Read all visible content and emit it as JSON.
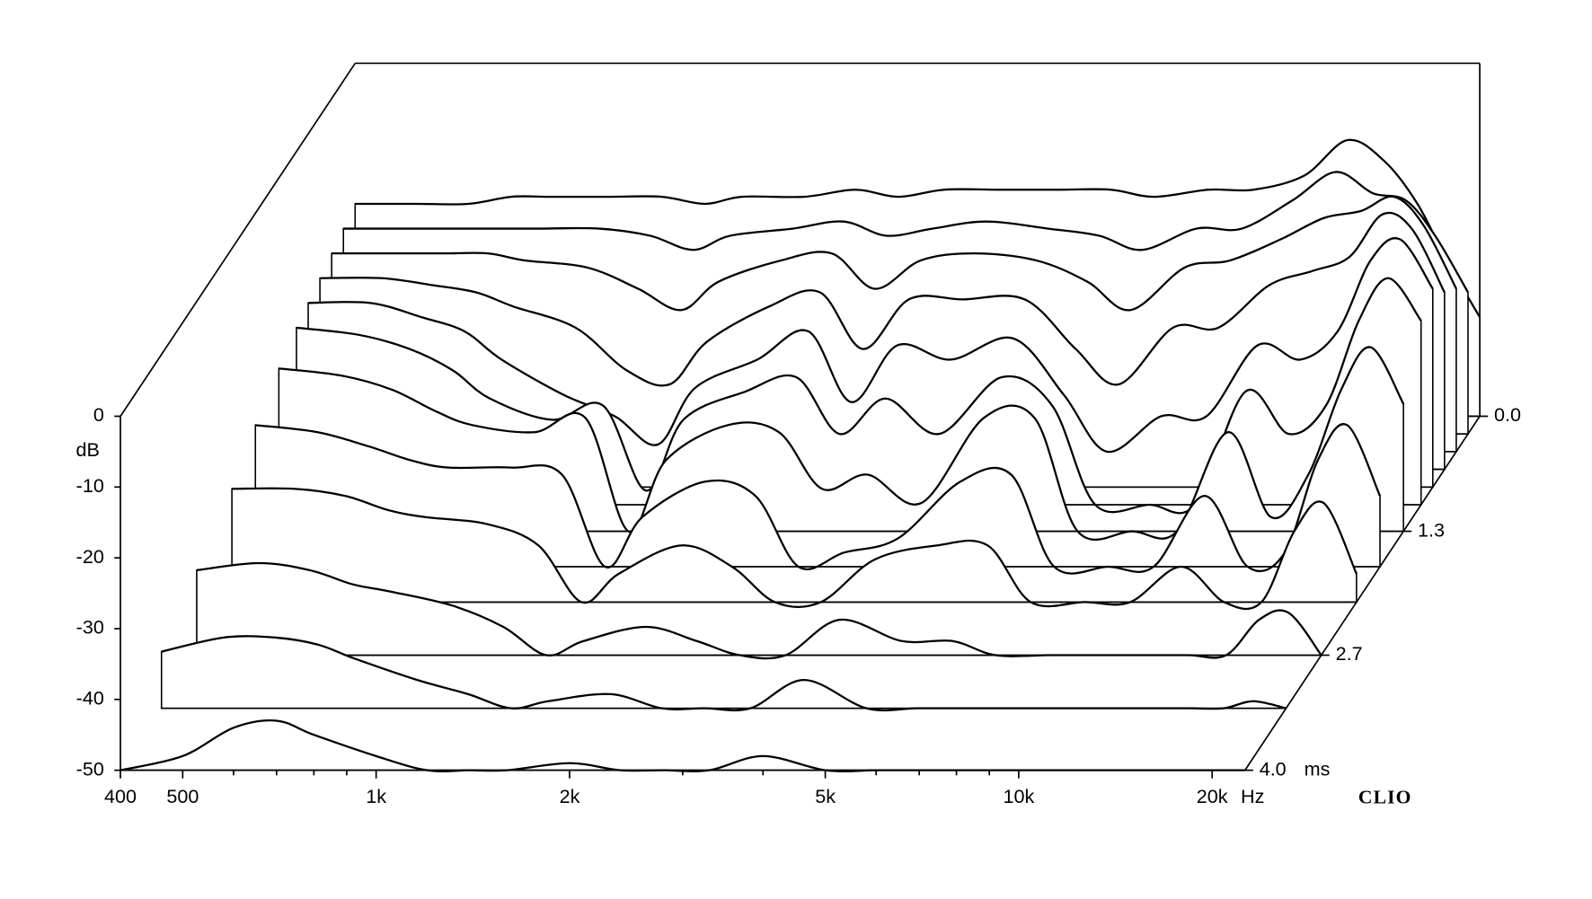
{
  "chart_data": {
    "type": "waterfall",
    "log_x": true,
    "x_unit": "Hz",
    "y_label": "dB",
    "z_unit": "ms",
    "brand": "CLIO",
    "line_color": "#000000",
    "fill_color": "#ffffff",
    "xlim": [
      400,
      22500
    ],
    "xticks": [
      400,
      500,
      {
        "value": 1000,
        "label": "1k"
      },
      {
        "value": 2000,
        "label": "2k"
      },
      {
        "value": 5000,
        "label": "5k"
      },
      {
        "value": 10000,
        "label": "10k"
      },
      {
        "value": 20000,
        "label": "20k"
      }
    ],
    "minor_xticks": [
      600,
      700,
      800,
      900,
      3000,
      4000,
      6000,
      7000,
      8000,
      9000
    ],
    "ylim": [
      -50,
      0
    ],
    "yticks": [
      0,
      -10,
      -20,
      -30,
      -40,
      -50
    ],
    "zlim": [
      0,
      4
    ],
    "zticks": [
      {
        "value": 0,
        "label": "0.0"
      },
      1.3,
      2.7,
      {
        "value": 4,
        "label": "4.0"
      }
    ],
    "x": [
      400,
      500,
      600,
      700,
      800,
      1000,
      1200,
      1400,
      1600,
      2000,
      2400,
      2800,
      3300,
      4000,
      5000,
      6000,
      7000,
      8500,
      10000,
      12000,
      14000,
      16000,
      18000,
      20000,
      22500
    ],
    "slices": [
      {
        "time": 0,
        "values": [
          -20,
          -20,
          -20,
          -19,
          -19,
          -19,
          -19,
          -20,
          -19,
          -19,
          -18,
          -19,
          -18,
          -18,
          -18,
          -18,
          -19,
          -18,
          -18,
          -16,
          -11,
          -14,
          -20,
          -28,
          -36
        ]
      },
      {
        "time": 0.2,
        "values": [
          -21,
          -21,
          -21,
          -21,
          -21,
          -21,
          -22,
          -24,
          -22,
          -21,
          -20,
          -22,
          -21,
          -20,
          -21,
          -22,
          -24,
          -21,
          -21,
          -17,
          -13,
          -16,
          -17,
          -22,
          -30
        ]
      },
      {
        "time": 0.4,
        "values": [
          -22,
          -22,
          -22,
          -22,
          -23,
          -24,
          -27,
          -30,
          -26,
          -23,
          -22,
          -27,
          -23,
          -22,
          -23,
          -26,
          -30,
          -24,
          -23,
          -20,
          -17,
          -16,
          -14,
          -18,
          -27
        ]
      },
      {
        "time": 0.6,
        "values": [
          -23,
          -23,
          -24,
          -25,
          -27,
          -30,
          -36,
          -38,
          -32,
          -27,
          -25,
          -33,
          -26,
          -26,
          -26,
          -33,
          -38,
          -30,
          -30,
          -24,
          -22,
          -20,
          -14,
          -16,
          -25
        ]
      },
      {
        "time": 0.8,
        "values": [
          -24,
          -24,
          -26,
          -28,
          -32,
          -37,
          -40,
          -44,
          -36,
          -32,
          -28,
          -38,
          -30,
          -32,
          -29,
          -37,
          -45,
          -40,
          -40,
          -30,
          -32,
          -28,
          -18,
          -15,
          -22
        ]
      },
      {
        "time": 1.0,
        "values": [
          -25,
          -26,
          -28,
          -31,
          -35,
          -38,
          -36,
          -48,
          -38,
          -34,
          -32,
          -40,
          -35,
          -40,
          -32,
          -36,
          -50,
          -50,
          -50,
          -34,
          -40,
          -36,
          -24,
          -18,
          -24
        ]
      },
      {
        "time": 1.3,
        "values": [
          -27,
          -28,
          -30,
          -33,
          -35,
          -36,
          -34,
          -50,
          -40,
          -35,
          -36,
          -44,
          -42,
          -46,
          -34,
          -34,
          -50,
          -50,
          -50,
          -36,
          -48,
          -42,
          -30,
          -24,
          -32
        ]
      },
      {
        "time": 1.7,
        "values": [
          -30,
          -31,
          -33,
          -35,
          -36,
          -36,
          -37,
          -50,
          -43,
          -38,
          -40,
          -50,
          -48,
          -46,
          -38,
          -37,
          -50,
          -50,
          -50,
          -40,
          -50,
          -48,
          -35,
          -30,
          -40
        ]
      },
      {
        "time": 2.1,
        "values": [
          -34,
          -34,
          -35,
          -37,
          -38,
          -39,
          -42,
          -50,
          -46,
          -42,
          -45,
          -50,
          -50,
          -44,
          -42,
          -42,
          -50,
          -50,
          -50,
          -45,
          -50,
          -50,
          -40,
          -36,
          -46
        ]
      },
      {
        "time": 2.7,
        "values": [
          -38,
          -37,
          -38,
          -40,
          -41,
          -43,
          -46,
          -50,
          -48,
          -46,
          -48,
          -50,
          -50,
          -45,
          -48,
          -48,
          -50,
          -50,
          -50,
          -50,
          -50,
          -50,
          -45,
          -44,
          -50
        ]
      },
      {
        "time": 3.3,
        "values": [
          -42,
          -40,
          -40,
          -41,
          -43,
          -46,
          -48,
          -50,
          -49,
          -48,
          -50,
          -50,
          -50,
          -46,
          -50,
          -50,
          -50,
          -50,
          -50,
          -50,
          -50,
          -50,
          -50,
          -49,
          -50
        ]
      },
      {
        "time": 4.0,
        "values": [
          -50,
          -48,
          -44,
          -43,
          -45,
          -48,
          -50,
          -50,
          -50,
          -49,
          -50,
          -50,
          -50,
          -48,
          -50,
          -50,
          -50,
          -50,
          -50,
          -50,
          -50,
          -50,
          -50,
          -50,
          -50
        ]
      }
    ]
  }
}
